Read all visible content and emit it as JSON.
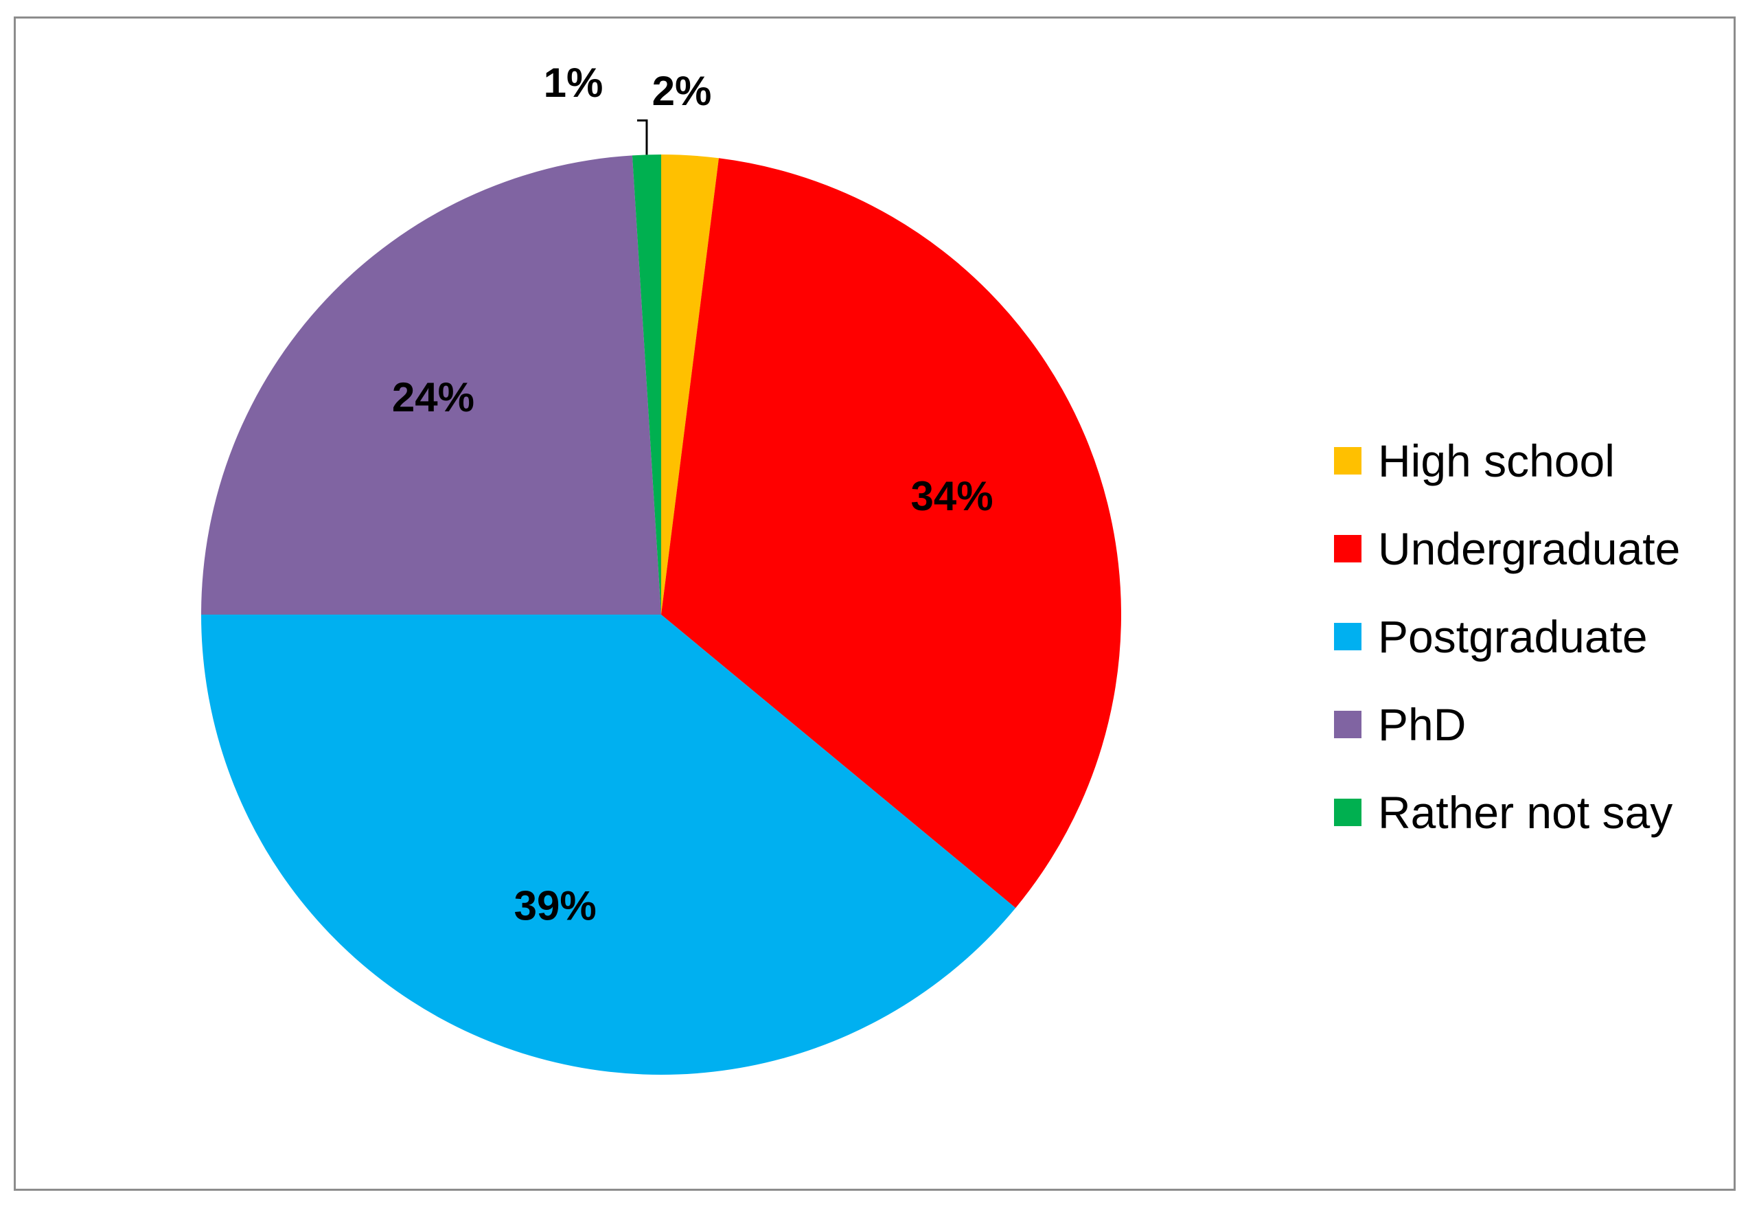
{
  "chart_data": {
    "type": "pie",
    "categories": [
      "High school",
      "Undergraduate",
      "Postgraduate",
      "PhD",
      "Rather not say"
    ],
    "values": [
      2,
      34,
      39,
      24,
      1
    ],
    "labels": [
      "2%",
      "34%",
      "39%",
      "24%",
      "1%"
    ],
    "colors": [
      "#FFC000",
      "#FF0000",
      "#00B0F0",
      "#8064A2",
      "#00B050"
    ],
    "start": "12 o'clock, clockwise",
    "legend_position": "right"
  }
}
